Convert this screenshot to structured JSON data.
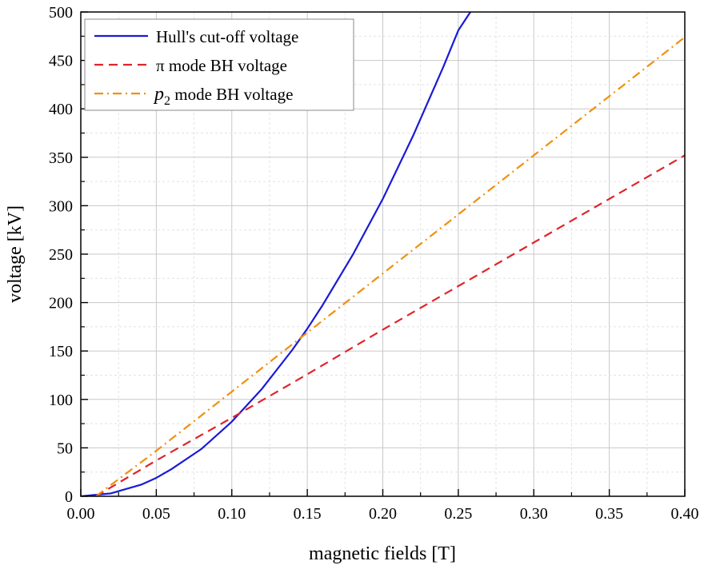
{
  "chart_data": {
    "type": "line",
    "title": "",
    "xlabel": "magnetic fields [T]",
    "ylabel": "voltage [kV]",
    "xlim": [
      0.0,
      0.4
    ],
    "ylim": [
      0,
      500
    ],
    "xticks": [
      0.0,
      0.05,
      0.1,
      0.15,
      0.2,
      0.25,
      0.3,
      0.35,
      0.4
    ],
    "xtick_labels": [
      "0.00",
      "0.05",
      "0.10",
      "0.15",
      "0.20",
      "0.25",
      "0.30",
      "0.35",
      "0.40"
    ],
    "yticks": [
      0,
      50,
      100,
      150,
      200,
      250,
      300,
      350,
      400,
      450,
      500
    ],
    "ytick_labels": [
      "0",
      "50",
      "100",
      "150",
      "200",
      "250",
      "300",
      "350",
      "400",
      "450",
      "500"
    ],
    "grid": true,
    "legend_position": "top-left",
    "series": [
      {
        "name": "Hull's cut-off voltage",
        "style": "solid",
        "color": "#1a1ad6",
        "x": [
          0.0,
          0.02,
          0.04,
          0.05,
          0.06,
          0.08,
          0.1,
          0.12,
          0.14,
          0.15,
          0.16,
          0.18,
          0.2,
          0.22,
          0.24,
          0.25,
          0.258
        ],
        "y": [
          0,
          3,
          12,
          19,
          28,
          49,
          77,
          111,
          151,
          173,
          197,
          249,
          307,
          372,
          443,
          481,
          500
        ]
      },
      {
        "name": "π mode BH voltage",
        "style": "dashed",
        "color": "#e0242a",
        "x": [
          0.01,
          0.05,
          0.1,
          0.15,
          0.2,
          0.25,
          0.3,
          0.35,
          0.4
        ],
        "y": [
          0,
          37,
          81,
          126,
          172,
          217,
          262,
          307,
          352
        ]
      },
      {
        "name": "p2 mode BH voltage",
        "name_base": "p",
        "name_sub": "2",
        "name_rest": " mode BH voltage",
        "style": "dashdot",
        "color": "#f0900c",
        "x": [
          0.01,
          0.05,
          0.1,
          0.15,
          0.2,
          0.25,
          0.3,
          0.35,
          0.4
        ],
        "y": [
          0,
          47,
          108,
          169,
          230,
          291,
          352,
          413,
          474
        ]
      }
    ]
  }
}
